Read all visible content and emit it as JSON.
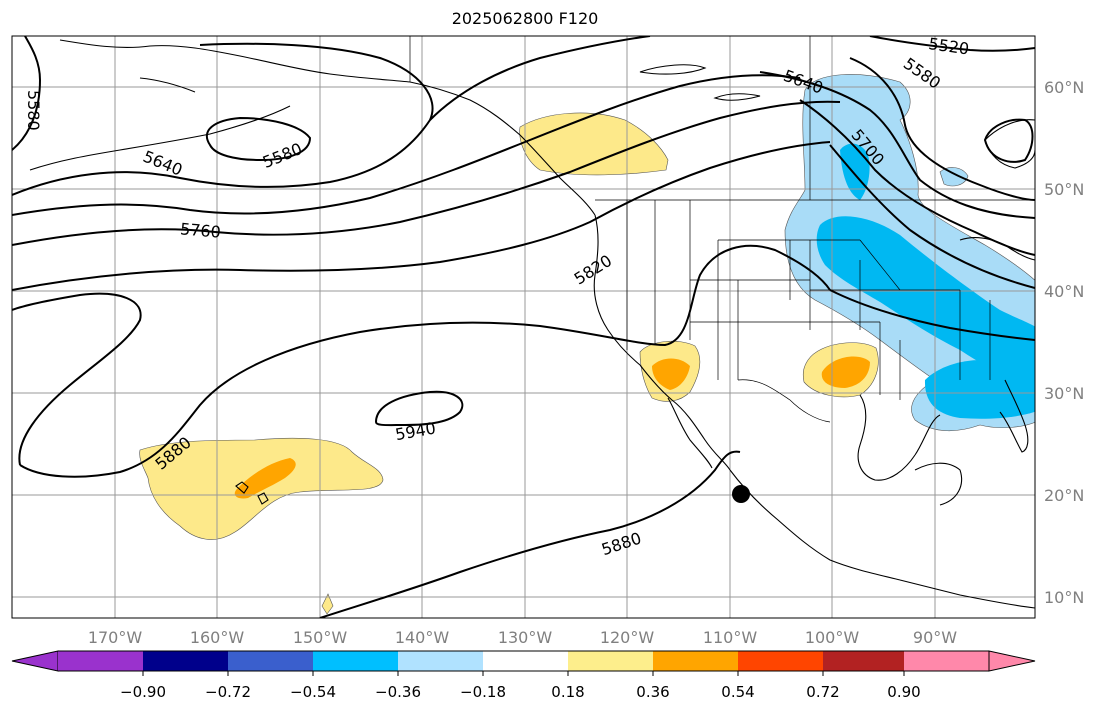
{
  "title": "2025062800 F120",
  "colors": {
    "land_outline": "#000000",
    "grid": "#999999",
    "contour": "#000000",
    "pos_018": "#fde98a",
    "pos_036": "#ffa500",
    "pos_054": "#ff4000",
    "neg_018": "#a9dcf7",
    "neg_036": "#00b8f2",
    "storm_marker": "#000000"
  },
  "lat_labels": [
    "60°N",
    "50°N",
    "40°N",
    "30°N",
    "20°N",
    "10°N"
  ],
  "lon_labels": [
    "170°W",
    "160°W",
    "150°W",
    "140°W",
    "130°W",
    "120°W",
    "110°W",
    "100°W",
    "90°W"
  ],
  "contour_labels": [
    "5580",
    "5640",
    "5580",
    "5760",
    "5820",
    "5880",
    "5940",
    "5880",
    "5640",
    "5700",
    "5580",
    "5520"
  ],
  "colorbar": {
    "colors": [
      "#9a32cd",
      "#00008b",
      "#3a5fcd",
      "#00bfff",
      "#b0e2ff",
      "#ffffff",
      "#fdee8c",
      "#ffa500",
      "#ff4500",
      "#b22222",
      "#ff88aa"
    ],
    "tick_labels": [
      "−0.90",
      "−0.72",
      "−0.54",
      "−0.36",
      "−0.18",
      "0.18",
      "0.36",
      "0.54",
      "0.72",
      "0.90"
    ]
  }
}
